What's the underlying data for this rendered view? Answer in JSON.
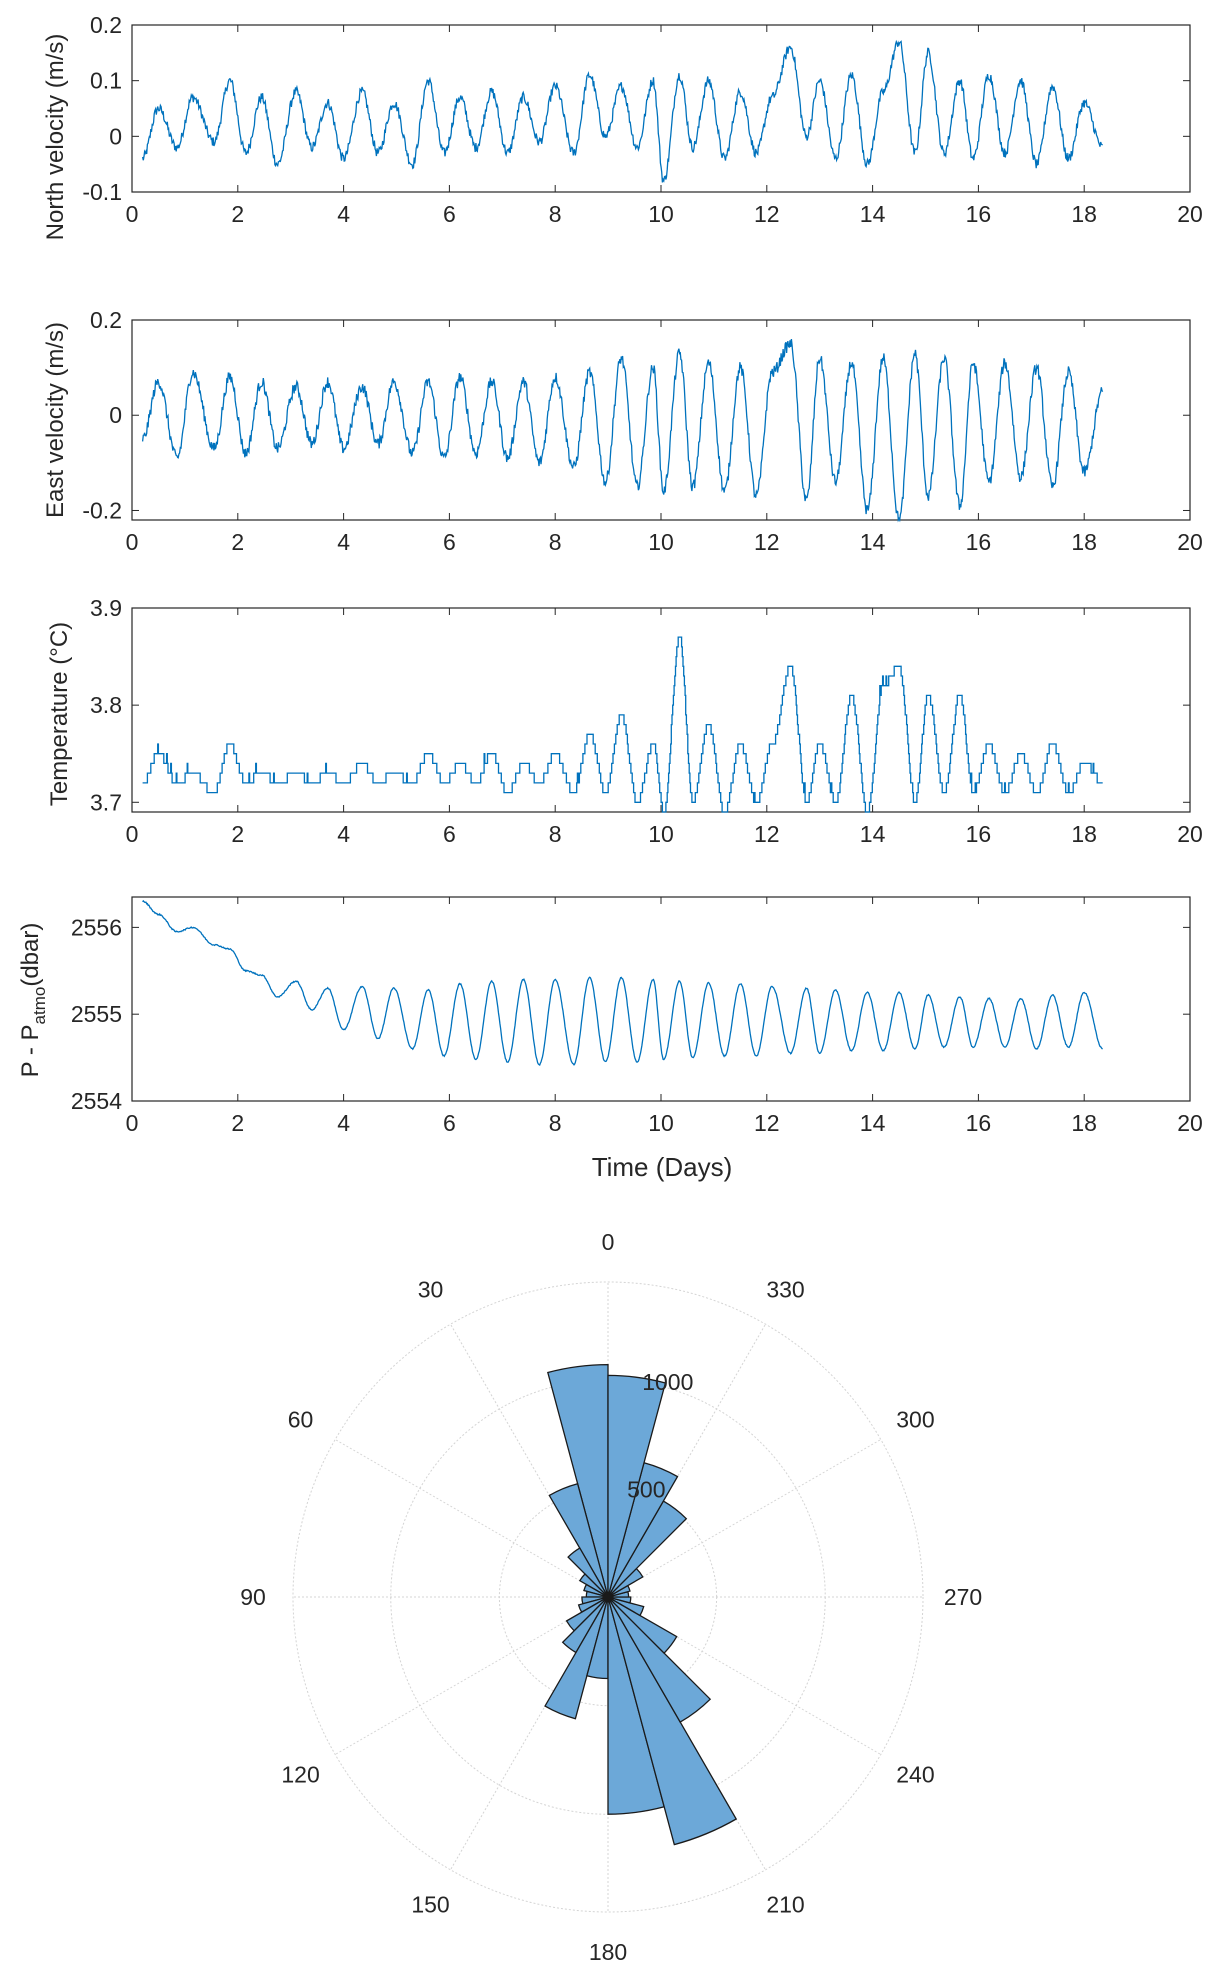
{
  "chart_data": [
    {
      "type": "line",
      "ylabel": "North velocity (m/s)",
      "xlim": [
        0,
        20
      ],
      "ylim": [
        -0.1,
        0.2
      ],
      "xticks": [
        "0",
        "2",
        "4",
        "6",
        "8",
        "10",
        "12",
        "14",
        "16",
        "18",
        "20"
      ],
      "yticks": [
        "-0.1",
        "0",
        "0.1",
        "0.2"
      ],
      "x": [
        0.2,
        0.5,
        0.85,
        1.15,
        1.55,
        1.85,
        2.15,
        2.45,
        2.75,
        3.1,
        3.4,
        3.7,
        4.0,
        4.35,
        4.65,
        4.95,
        5.3,
        5.6,
        5.9,
        6.2,
        6.5,
        6.8,
        7.1,
        7.4,
        7.7,
        8.0,
        8.35,
        8.65,
        8.95,
        9.25,
        9.55,
        9.85,
        10.05,
        10.35,
        10.6,
        10.9,
        11.2,
        11.5,
        11.8,
        12.1,
        12.45,
        12.75,
        13.0,
        13.3,
        13.6,
        13.9,
        14.2,
        14.5,
        14.8,
        15.05,
        15.35,
        15.65,
        15.9,
        16.2,
        16.5,
        16.8,
        17.1,
        17.4,
        17.7,
        18.0,
        18.35
      ],
      "y": [
        -0.04,
        0.05,
        -0.02,
        0.07,
        -0.01,
        0.1,
        -0.03,
        0.07,
        -0.05,
        0.08,
        -0.02,
        0.06,
        -0.04,
        0.08,
        -0.03,
        0.06,
        -0.05,
        0.1,
        -0.03,
        0.07,
        -0.02,
        0.08,
        -0.03,
        0.07,
        -0.01,
        0.09,
        -0.03,
        0.11,
        0.0,
        0.09,
        -0.02,
        0.1,
        -0.08,
        0.11,
        -0.02,
        0.1,
        -0.04,
        0.08,
        -0.03,
        0.07,
        0.16,
        0.0,
        0.1,
        -0.04,
        0.11,
        -0.05,
        0.08,
        0.17,
        -0.03,
        0.15,
        -0.03,
        0.1,
        -0.04,
        0.11,
        -0.03,
        0.1,
        -0.05,
        0.09,
        -0.04,
        0.06,
        -0.02
      ]
    },
    {
      "type": "line",
      "ylabel": "East velocity (m/s)",
      "xlim": [
        0,
        20
      ],
      "ylim": [
        -0.22,
        0.2
      ],
      "xticks": [
        "0",
        "2",
        "4",
        "6",
        "8",
        "10",
        "12",
        "14",
        "16",
        "18",
        "20"
      ],
      "yticks": [
        "-0.2",
        "0",
        "0.2"
      ],
      "x": [
        0.2,
        0.5,
        0.85,
        1.15,
        1.55,
        1.85,
        2.15,
        2.45,
        2.75,
        3.1,
        3.4,
        3.7,
        4.0,
        4.35,
        4.65,
        4.95,
        5.3,
        5.6,
        5.9,
        6.2,
        6.5,
        6.8,
        7.1,
        7.4,
        7.7,
        8.0,
        8.35,
        8.65,
        8.95,
        9.25,
        9.55,
        9.85,
        10.05,
        10.35,
        10.6,
        10.9,
        11.2,
        11.5,
        11.8,
        12.1,
        12.45,
        12.75,
        13.0,
        13.3,
        13.6,
        13.9,
        14.2,
        14.5,
        14.8,
        15.05,
        15.35,
        15.65,
        15.9,
        16.2,
        16.5,
        16.8,
        17.1,
        17.4,
        17.7,
        18.0,
        18.35
      ],
      "y": [
        -0.05,
        0.07,
        -0.09,
        0.09,
        -0.07,
        0.08,
        -0.08,
        0.07,
        -0.07,
        0.06,
        -0.06,
        0.07,
        -0.07,
        0.06,
        -0.06,
        0.07,
        -0.08,
        0.07,
        -0.09,
        0.08,
        -0.08,
        0.07,
        -0.09,
        0.07,
        -0.1,
        0.08,
        -0.11,
        0.09,
        -0.14,
        0.12,
        -0.15,
        0.1,
        -0.16,
        0.13,
        -0.15,
        0.11,
        -0.16,
        0.1,
        -0.17,
        0.09,
        0.15,
        -0.18,
        0.12,
        -0.14,
        0.11,
        -0.2,
        0.12,
        -0.22,
        0.13,
        -0.17,
        0.12,
        -0.19,
        0.11,
        -0.14,
        0.11,
        -0.13,
        0.1,
        -0.15,
        0.09,
        -0.12,
        0.05
      ]
    },
    {
      "type": "line",
      "ylabel": "Temperature (°C)",
      "xlim": [
        0,
        20
      ],
      "ylim": [
        3.69,
        3.9
      ],
      "xticks": [
        "0",
        "2",
        "4",
        "6",
        "8",
        "10",
        "12",
        "14",
        "16",
        "18",
        "20"
      ],
      "yticks": [
        "3.7",
        "3.8",
        "3.9"
      ],
      "x": [
        0.2,
        0.5,
        0.85,
        1.15,
        1.55,
        1.85,
        2.15,
        2.45,
        2.75,
        3.1,
        3.4,
        3.7,
        4.0,
        4.35,
        4.65,
        4.95,
        5.3,
        5.6,
        5.9,
        6.2,
        6.5,
        6.8,
        7.1,
        7.4,
        7.7,
        8.0,
        8.35,
        8.65,
        8.95,
        9.25,
        9.55,
        9.85,
        10.05,
        10.35,
        10.6,
        10.9,
        11.2,
        11.5,
        11.8,
        12.1,
        12.45,
        12.75,
        13.0,
        13.3,
        13.6,
        13.9,
        14.2,
        14.5,
        14.8,
        15.05,
        15.35,
        15.65,
        15.9,
        16.2,
        16.5,
        16.8,
        17.1,
        17.4,
        17.7,
        18.0,
        18.35
      ],
      "y": [
        3.72,
        3.75,
        3.72,
        3.73,
        3.71,
        3.76,
        3.72,
        3.73,
        3.72,
        3.73,
        3.72,
        3.73,
        3.72,
        3.74,
        3.72,
        3.73,
        3.72,
        3.75,
        3.72,
        3.74,
        3.72,
        3.75,
        3.71,
        3.74,
        3.72,
        3.75,
        3.71,
        3.77,
        3.71,
        3.79,
        3.7,
        3.76,
        3.69,
        3.87,
        3.7,
        3.78,
        3.69,
        3.76,
        3.7,
        3.76,
        3.84,
        3.7,
        3.76,
        3.7,
        3.81,
        3.69,
        3.82,
        3.84,
        3.7,
        3.81,
        3.71,
        3.81,
        3.71,
        3.76,
        3.71,
        3.75,
        3.71,
        3.76,
        3.71,
        3.74,
        3.72
      ]
    },
    {
      "type": "line",
      "ylabel": "P - P_atmo(dbar)",
      "ylabel_main": "P - P",
      "ylabel_sub": "atmo",
      "ylabel_unit": "(dbar)",
      "xlabel": "Time (Days)",
      "xlim": [
        0,
        20
      ],
      "ylim": [
        2554,
        2556.35
      ],
      "xticks": [
        "0",
        "2",
        "4",
        "6",
        "8",
        "10",
        "12",
        "14",
        "16",
        "18",
        "20"
      ],
      "yticks": [
        "2554",
        "2555",
        "2556"
      ],
      "tidal_periods": 36,
      "x": [
        0.2,
        0.5,
        0.85,
        1.15,
        1.55,
        1.85,
        2.15,
        2.45,
        2.75,
        3.1,
        3.4,
        3.7,
        4.0,
        4.35,
        4.65,
        4.95,
        5.3,
        5.6,
        5.9,
        6.2,
        6.5,
        6.8,
        7.1,
        7.4,
        7.7,
        8.0,
        8.35,
        8.65,
        8.95,
        9.25,
        9.55,
        9.85,
        10.05,
        10.35,
        10.6,
        10.9,
        11.2,
        11.5,
        11.8,
        12.1,
        12.45,
        12.75,
        13.0,
        13.3,
        13.6,
        13.9,
        14.2,
        14.5,
        14.8,
        15.05,
        15.35,
        15.65,
        15.9,
        16.2,
        16.5,
        16.8,
        17.1,
        17.4,
        17.7,
        18.0,
        18.35
      ],
      "y": [
        2556.3,
        2556.15,
        2555.95,
        2556.0,
        2555.8,
        2555.75,
        2555.5,
        2555.45,
        2555.2,
        2555.38,
        2555.05,
        2555.3,
        2554.82,
        2555.32,
        2554.72,
        2555.3,
        2554.6,
        2555.28,
        2554.52,
        2555.35,
        2554.48,
        2555.38,
        2554.45,
        2555.4,
        2554.42,
        2555.4,
        2554.42,
        2555.42,
        2554.45,
        2555.42,
        2554.45,
        2555.4,
        2554.48,
        2555.38,
        2554.5,
        2555.36,
        2554.52,
        2555.35,
        2554.52,
        2555.32,
        2554.55,
        2555.3,
        2554.55,
        2555.28,
        2554.58,
        2555.25,
        2554.58,
        2555.25,
        2554.6,
        2555.22,
        2554.62,
        2555.2,
        2554.62,
        2555.18,
        2554.62,
        2555.18,
        2554.6,
        2555.22,
        2554.62,
        2555.25,
        2554.6
      ]
    },
    {
      "type": "polar-histogram",
      "theta_direction": "counterclockwise",
      "theta_zero": "top",
      "theta_labels": [
        "0",
        "30",
        "60",
        "90",
        "120",
        "150",
        "180",
        "210",
        "240",
        "270",
        "300",
        "330"
      ],
      "r_labels": [
        "500",
        "1000"
      ],
      "rlim": [
        0,
        1450
      ],
      "bin_width_deg": 15,
      "bins": [
        {
          "from": 0,
          "to": 15,
          "value": 1070
        },
        {
          "from": 15,
          "to": 30,
          "value": 540
        },
        {
          "from": 30,
          "to": 45,
          "value": 260
        },
        {
          "from": 45,
          "to": 60,
          "value": 150
        },
        {
          "from": 60,
          "to": 75,
          "value": 115
        },
        {
          "from": 75,
          "to": 90,
          "value": 100
        },
        {
          "from": 90,
          "to": 105,
          "value": 120
        },
        {
          "from": 105,
          "to": 120,
          "value": 140
        },
        {
          "from": 120,
          "to": 135,
          "value": 220
        },
        {
          "from": 135,
          "to": 150,
          "value": 295
        },
        {
          "from": 150,
          "to": 165,
          "value": 580
        },
        {
          "from": 165,
          "to": 180,
          "value": 375
        },
        {
          "from": 180,
          "to": 195,
          "value": 1000
        },
        {
          "from": 195,
          "to": 210,
          "value": 1180
        },
        {
          "from": 210,
          "to": 225,
          "value": 665
        },
        {
          "from": 225,
          "to": 240,
          "value": 365
        },
        {
          "from": 240,
          "to": 255,
          "value": 170
        },
        {
          "from": 255,
          "to": 270,
          "value": 105
        },
        {
          "from": 270,
          "to": 285,
          "value": 95
        },
        {
          "from": 285,
          "to": 300,
          "value": 105
        },
        {
          "from": 300,
          "to": 315,
          "value": 185
        },
        {
          "from": 315,
          "to": 330,
          "value": 510
        },
        {
          "from": 330,
          "to": 345,
          "value": 640
        },
        {
          "from": 345,
          "to": 360,
          "value": 1020
        }
      ]
    }
  ]
}
